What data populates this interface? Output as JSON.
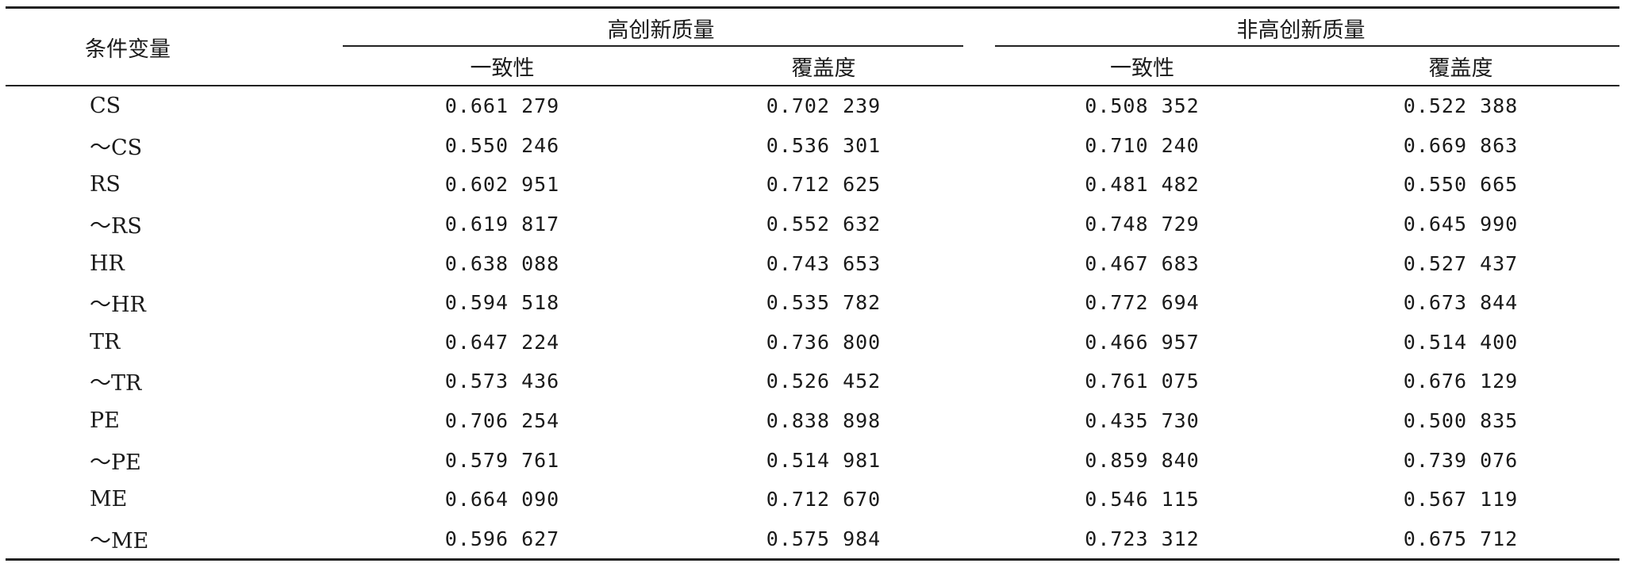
{
  "table": {
    "header": {
      "condition_label": "条件变量",
      "group_high": "高创新质量",
      "group_nonhigh": "非高创新质量",
      "consistency": "一致性",
      "coverage": "覆盖度"
    },
    "rows": [
      {
        "label": "CS",
        "high_consistency": "0.661 279",
        "high_coverage": "0.702 239",
        "nonhigh_consistency": "0.508 352",
        "nonhigh_coverage": "0.522 388"
      },
      {
        "label": "～CS",
        "high_consistency": "0.550 246",
        "high_coverage": "0.536 301",
        "nonhigh_consistency": "0.710 240",
        "nonhigh_coverage": "0.669 863"
      },
      {
        "label": "RS",
        "high_consistency": "0.602 951",
        "high_coverage": "0.712 625",
        "nonhigh_consistency": "0.481 482",
        "nonhigh_coverage": "0.550 665"
      },
      {
        "label": "～RS",
        "high_consistency": "0.619 817",
        "high_coverage": "0.552 632",
        "nonhigh_consistency": "0.748 729",
        "nonhigh_coverage": "0.645 990"
      },
      {
        "label": "HR",
        "high_consistency": "0.638 088",
        "high_coverage": "0.743 653",
        "nonhigh_consistency": "0.467 683",
        "nonhigh_coverage": "0.527 437"
      },
      {
        "label": "～HR",
        "high_consistency": "0.594 518",
        "high_coverage": "0.535 782",
        "nonhigh_consistency": "0.772 694",
        "nonhigh_coverage": "0.673 844"
      },
      {
        "label": "TR",
        "high_consistency": "0.647 224",
        "high_coverage": "0.736 800",
        "nonhigh_consistency": "0.466 957",
        "nonhigh_coverage": "0.514 400"
      },
      {
        "label": "～TR",
        "high_consistency": "0.573 436",
        "high_coverage": "0.526 452",
        "nonhigh_consistency": "0.761 075",
        "nonhigh_coverage": "0.676 129"
      },
      {
        "label": "PE",
        "high_consistency": "0.706 254",
        "high_coverage": "0.838 898",
        "nonhigh_consistency": "0.435 730",
        "nonhigh_coverage": "0.500 835"
      },
      {
        "label": "～PE",
        "high_consistency": "0.579 761",
        "high_coverage": "0.514 981",
        "nonhigh_consistency": "0.859 840",
        "nonhigh_coverage": "0.739 076"
      },
      {
        "label": "ME",
        "high_consistency": "0.664 090",
        "high_coverage": "0.712 670",
        "nonhigh_consistency": "0.546 115",
        "nonhigh_coverage": "0.567 119"
      },
      {
        "label": "～ME",
        "high_consistency": "0.596 627",
        "high_coverage": "0.575 984",
        "nonhigh_consistency": "0.723 312",
        "nonhigh_coverage": "0.675 712"
      }
    ]
  }
}
